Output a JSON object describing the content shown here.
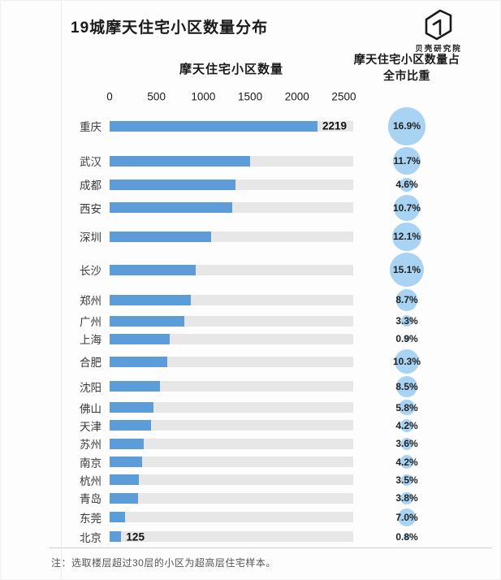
{
  "header": {
    "title": "19城摩天住宅小区数量分布",
    "logo_text": "贝壳研究院"
  },
  "columns": {
    "bars_header": "摩天住宅小区数量",
    "bubbles_header": "摩天住宅小区数量占全市比重"
  },
  "footnote": "注：选取楼层超过30层的小区为超高层住宅样本。",
  "colors": {
    "bar": "#5b9cd9",
    "track": "#e7e7e7",
    "bubble": "#a8d3f2"
  },
  "chart_data": {
    "type": "bar",
    "orientation": "horizontal",
    "title": "19城摩天住宅小区数量分布",
    "xlabel": "摩天住宅小区数量",
    "xlim": [
      0,
      2500
    ],
    "x_ticks": [
      0,
      500,
      1000,
      1500,
      2000,
      2500
    ],
    "scale_max": 2600,
    "grid": false,
    "legend_position": "none",
    "categories": [
      "重庆",
      "武汉",
      "成都",
      "西安",
      "深圳",
      "长沙",
      "郑州",
      "广州",
      "上海",
      "合肥",
      "沈阳",
      "佛山",
      "天津",
      "苏州",
      "南京",
      "杭州",
      "青岛",
      "东莞",
      "北京"
    ],
    "series": [
      {
        "name": "摩天住宅小区数量",
        "values": [
          2219,
          1500,
          1340,
          1310,
          1080,
          920,
          870,
          800,
          640,
          615,
          540,
          470,
          440,
          360,
          350,
          310,
          300,
          165,
          125
        ]
      },
      {
        "name": "摩天住宅小区数量占全市比重(%)",
        "values": [
          16.9,
          11.7,
          4.6,
          10.7,
          12.1,
          15.1,
          8.7,
          3.3,
          0.9,
          10.3,
          8.5,
          5.8,
          4.2,
          3.6,
          4.2,
          3.5,
          3.8,
          7.0,
          0.8
        ]
      }
    ],
    "bar_value_labels": [
      "2219",
      "",
      "",
      "",
      "",
      "",
      "",
      "",
      "",
      "",
      "",
      "",
      "",
      "",
      "",
      "",
      "",
      "",
      "125"
    ]
  }
}
